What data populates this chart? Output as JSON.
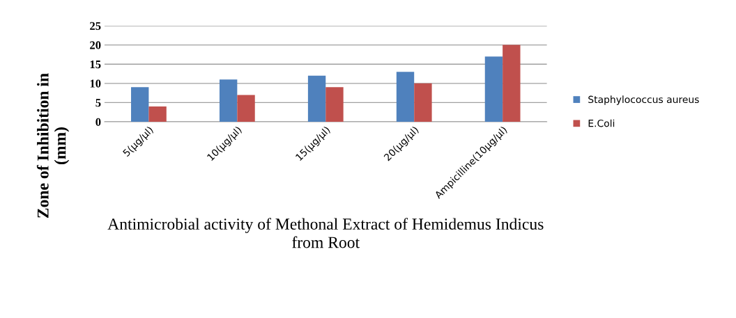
{
  "chart_data": {
    "type": "bar",
    "xlabel": "Antimicrobial activity of Methonal Extract of Hemidemus Indicus\nfrom Root",
    "ylabel": "Zone of Inhibition in\n(mm)",
    "categories": [
      "5(µg/µl)",
      "10(µg/µl)",
      "15(µg/µl)",
      "20(µg/µl)",
      "Ampicilline(10µg/µl)"
    ],
    "series": [
      {
        "name": "Staphylococcus aureus",
        "color": "#4f81bd",
        "values": [
          9,
          11,
          12,
          13,
          17
        ]
      },
      {
        "name": "E.Coli",
        "color": "#c0504d",
        "values": [
          4,
          7,
          9,
          10,
          20
        ]
      }
    ],
    "ylim": [
      0,
      25
    ],
    "yticks": [
      0,
      5,
      10,
      15,
      20,
      25
    ],
    "grid": "y",
    "legend": "right"
  }
}
